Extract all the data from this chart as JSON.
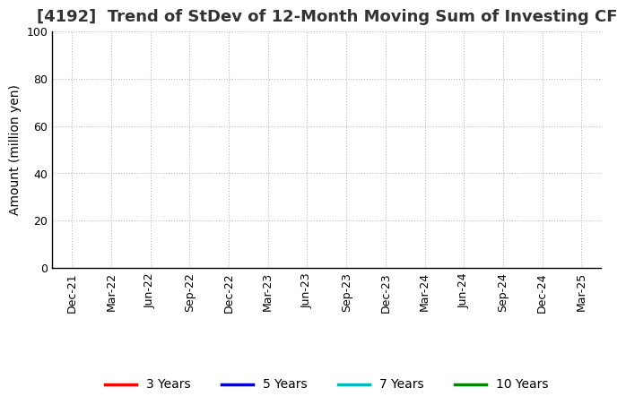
{
  "title": "[4192]  Trend of StDev of 12-Month Moving Sum of Investing CF",
  "ylabel": "Amount (million yen)",
  "ylim": [
    0,
    100
  ],
  "yticks": [
    0,
    20,
    40,
    60,
    80,
    100
  ],
  "x_tick_labels": [
    "Dec-21",
    "Mar-22",
    "Jun-22",
    "Sep-22",
    "Dec-22",
    "Mar-23",
    "Jun-23",
    "Sep-23",
    "Dec-23",
    "Mar-24",
    "Jun-24",
    "Sep-24",
    "Dec-24",
    "Mar-25"
  ],
  "background_color": "#ffffff",
  "grid_color": "#bbbbbb",
  "legend_entries": [
    {
      "label": "3 Years",
      "color": "#ff0000"
    },
    {
      "label": "5 Years",
      "color": "#0000cc"
    },
    {
      "label": "7 Years",
      "color": "#00bbbb"
    },
    {
      "label": "10 Years",
      "color": "#008800"
    }
  ],
  "title_fontsize": 13,
  "axis_label_fontsize": 10,
  "tick_fontsize": 9,
  "legend_fontsize": 10
}
